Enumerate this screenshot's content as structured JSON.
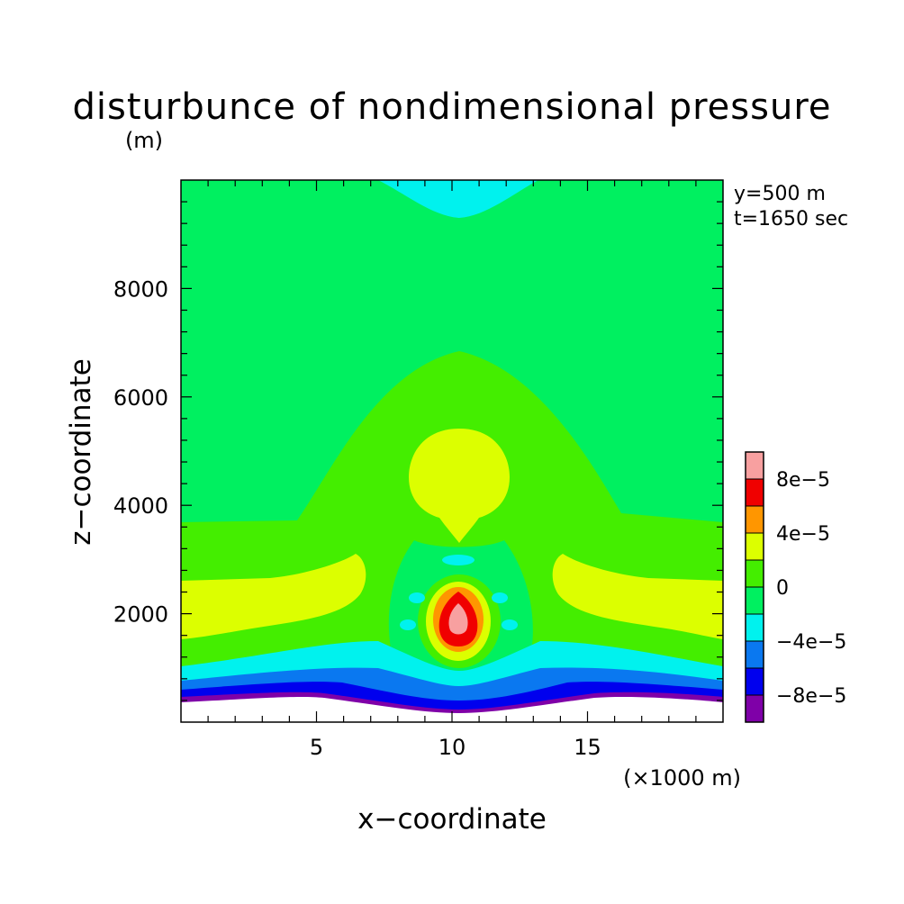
{
  "chart_data": {
    "type": "heatmap",
    "subtype": "filled-contour",
    "title": "disturbunce of nondimensional pressure",
    "unit": "(m)",
    "xlabel": "x−coordinate",
    "ylabel": "z−coordinate",
    "x_unit_note": "(×1000 m)",
    "annotations": [
      "y=500 m",
      "t=1650 sec"
    ],
    "xlim": [
      0,
      20000
    ],
    "ylim": [
      0,
      10000
    ],
    "x_ticks": [
      5000,
      10000,
      15000
    ],
    "x_tick_labels": [
      "5",
      "10",
      "15"
    ],
    "y_ticks": [
      2000,
      4000,
      6000,
      8000
    ],
    "y_tick_labels": [
      "2000",
      "4000",
      "6000",
      "8000"
    ],
    "colorbar": {
      "levels": [
        -0.0001,
        -8e-05,
        -6e-05,
        -4e-05,
        -2e-05,
        0,
        2e-05,
        4e-05,
        6e-05,
        8e-05,
        0.0001
      ],
      "colors": [
        "#7f00a8",
        "#0000ee",
        "#0a78f0",
        "#00f2ee",
        "#00f060",
        "#44ee00",
        "#dcff00",
        "#ff9600",
        "#f00000",
        "#f8a0a0"
      ],
      "labels": [
        {
          "value": -8e-05,
          "text": "−8e−5"
        },
        {
          "value": -4e-05,
          "text": "−4e−5"
        },
        {
          "value": 0,
          "text": "0"
        },
        {
          "value": 4e-05,
          "text": "4e−5"
        },
        {
          "value": 8e-05,
          "text": "8e−5"
        }
      ]
    },
    "field_features": [
      {
        "description": "weak negative cap at top center",
        "x": 10200,
        "z": 9700,
        "value": -3e-05
      },
      {
        "description": "positive center anomaly",
        "x": 10200,
        "z": 2000,
        "value": 9e-05
      },
      {
        "description": "positive bubble",
        "x": 10100,
        "z": 4500,
        "value": 3e-05
      },
      {
        "description": "positive side lobes",
        "x": [
          2000,
          18000
        ],
        "z": 2100,
        "value": 3e-05
      },
      {
        "description": "negative layer near bottom",
        "z": [
          300,
          900
        ],
        "value": -8e-05
      },
      {
        "description": "terrain (no data) below",
        "z": [
          0,
          300
        ]
      }
    ]
  }
}
